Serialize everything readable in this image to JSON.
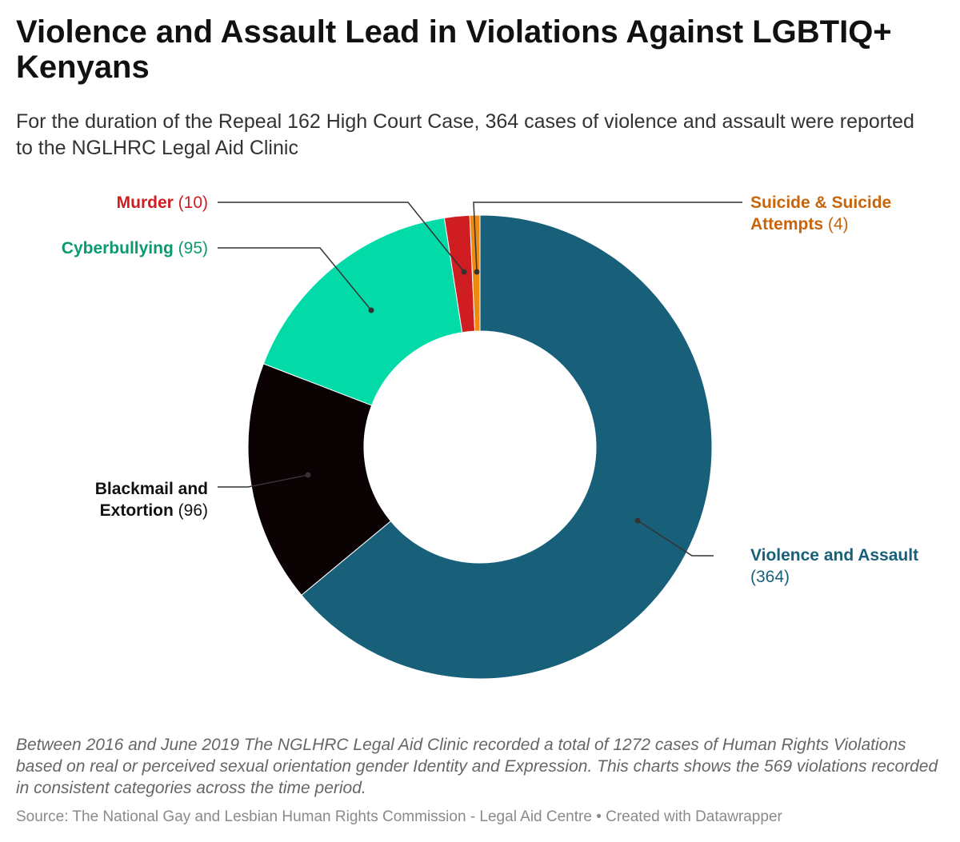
{
  "title": "Violence and Assault Lead in Violations Against LGBTIQ+ Kenyans",
  "subtitle": "For the duration of the Repeal 162 High Court Case, 364 cases of violence and assault were reported to the NGLHRC Legal Aid Clinic",
  "notes": "Between 2016 and June 2019 The NGLHRC Legal Aid Clinic recorded a total of 1272 cases of Human Rights Violations based on real or perceived sexual orientation gender Identity and Expression. This charts shows the 569 violations recorded in consistent categories across the time period.",
  "source": "Source: The National Gay and Lesbian Human Rights Commission - Legal Aid Centre • Created with Datawrapper",
  "chart_data": {
    "type": "pie",
    "donut": true,
    "slices": [
      {
        "name": "Violence and Assault",
        "value": 364,
        "display": "(364)",
        "color": "#18607a"
      },
      {
        "name": "Blackmail and Extortion",
        "value": 96,
        "display": "(96)",
        "color": "#0a0202"
      },
      {
        "name": "Cyberbullying",
        "value": 95,
        "display": "(95)",
        "color": "#02dba8"
      },
      {
        "name": "Murder",
        "value": 10,
        "display": "(10)",
        "color": "#cf1d22"
      },
      {
        "name": "Suicide & Suicide Attempts",
        "value": 4,
        "display": "(4)",
        "color": "#ed8a12"
      }
    ],
    "label_colors": {
      "Violence and Assault": "#18607a",
      "Blackmail and Extortion": "#111111",
      "Cyberbullying": "#0a9a70",
      "Murder": "#cf1d22",
      "Suicide & Suicide Attempts": "#c8650a"
    }
  }
}
